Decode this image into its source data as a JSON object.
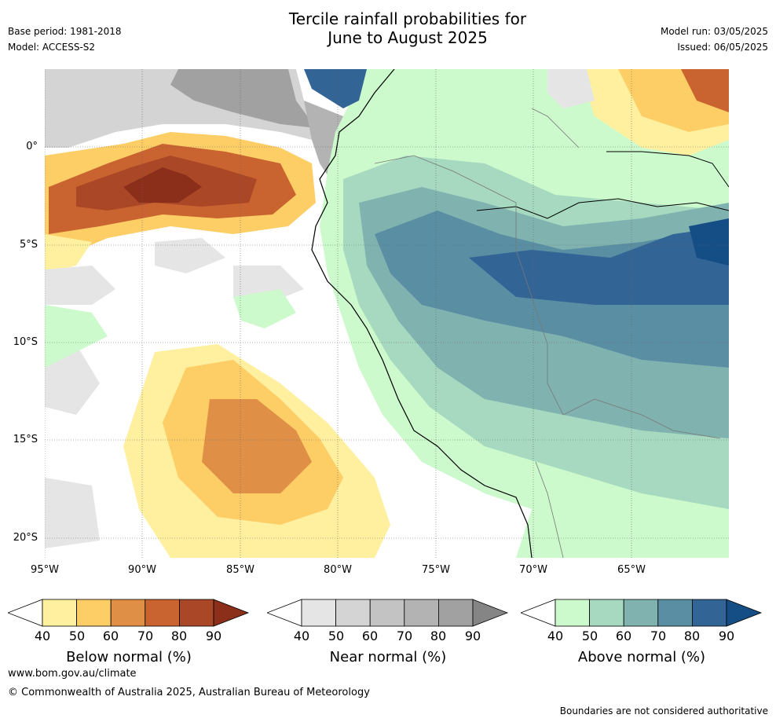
{
  "title": {
    "line1": "Tercile rainfall probabilities for",
    "line2": "June to August 2025"
  },
  "meta_left": {
    "base_period": "Base period: 1981-2018",
    "model": "Model: ACCESS-S2"
  },
  "meta_right": {
    "model_run": "Model run: 03/05/2025",
    "issued": "Issued: 06/05/2025"
  },
  "map": {
    "lat_labels": [
      "0°",
      "5°S",
      "10°S",
      "15°S",
      "20°S"
    ],
    "lon_labels": [
      "95°W",
      "90°W",
      "85°W",
      "80°W",
      "75°W",
      "70°W",
      "65°W"
    ],
    "extent": {
      "lon": [
        -95,
        -60
      ],
      "lat": [
        -21,
        4
      ]
    }
  },
  "colorbars": [
    {
      "label": "Below normal (%)",
      "ticks": [
        "40",
        "50",
        "60",
        "70",
        "80",
        "90"
      ],
      "colors": [
        "#fff0a0",
        "#fdcd66",
        "#df8f46",
        "#c9632f",
        "#aa4726",
        "#8b2e1a"
      ]
    },
    {
      "label": "Near normal (%)",
      "ticks": [
        "40",
        "50",
        "60",
        "70",
        "80",
        "90"
      ],
      "colors": [
        "#e5e5e5",
        "#d4d4d4",
        "#c3c3c3",
        "#b3b3b3",
        "#a1a1a1",
        "#858585"
      ]
    },
    {
      "label": "Above normal (%)",
      "ticks": [
        "40",
        "50",
        "60",
        "70",
        "80",
        "90"
      ],
      "colors": [
        "#ccfacc",
        "#a6d9bf",
        "#80b3b0",
        "#5a8fa3",
        "#336496",
        "#154d85"
      ]
    }
  ],
  "footer": {
    "url": "www.bom.gov.au/climate",
    "copyright": "© Commonwealth of Australia 2025, Australian Bureau of Meteorology",
    "disclaimer": "Boundaries are not considered authoritative"
  }
}
